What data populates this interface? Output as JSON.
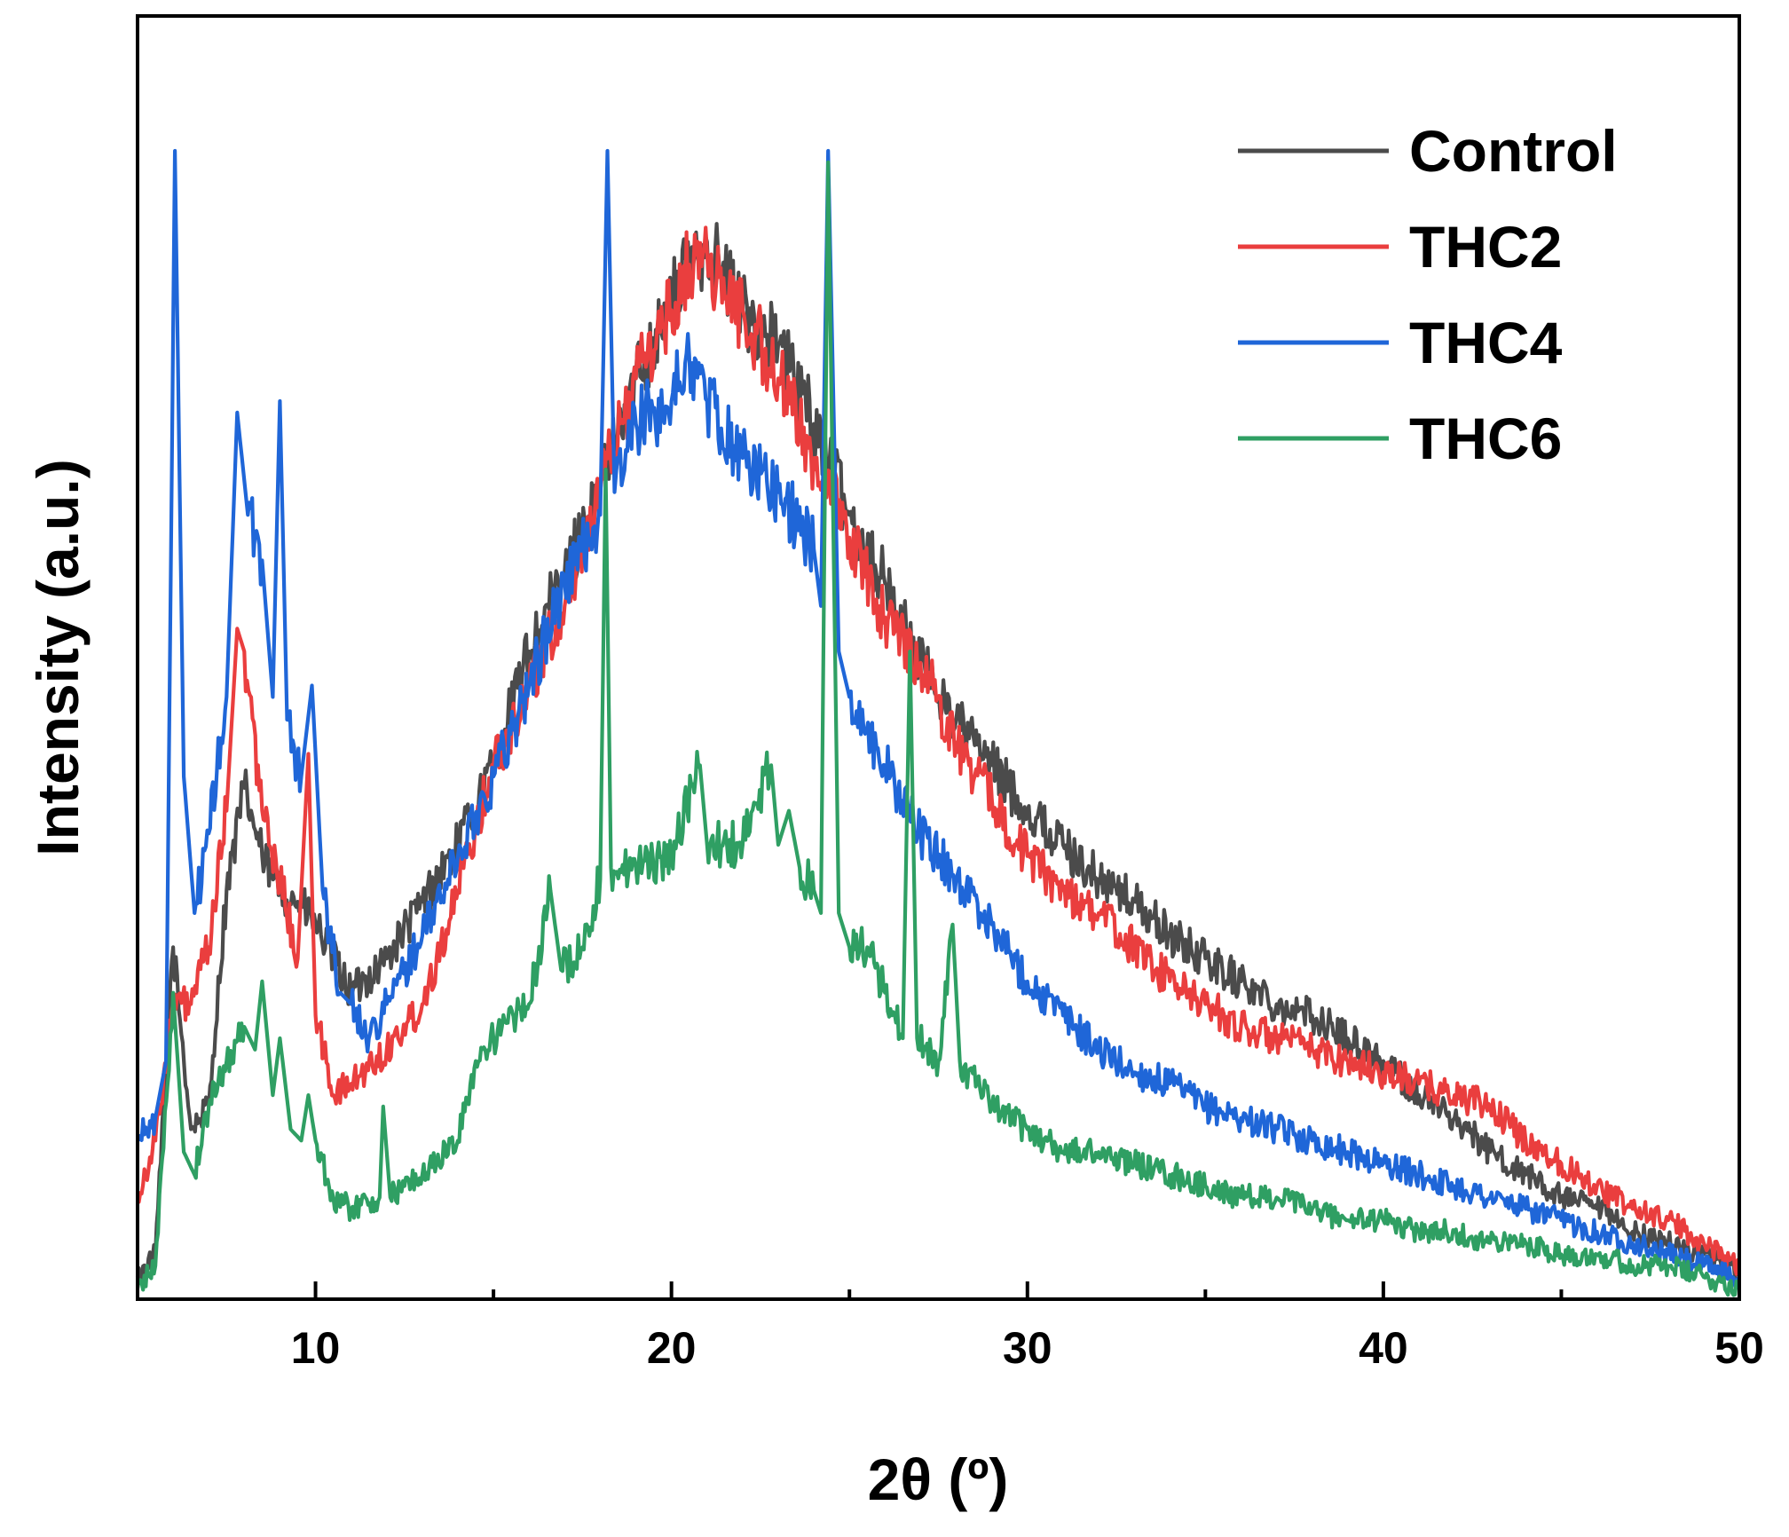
{
  "chart_data": {
    "type": "line",
    "title": "",
    "xlabel": "2θ (º)",
    "ylabel": "Intensity (a.u.)",
    "xlim": [
      5,
      50
    ],
    "ylim": [
      0,
      1
    ],
    "xticks": [
      10,
      20,
      30,
      40,
      50
    ],
    "x_minor_ticks": [
      15,
      25,
      35,
      45
    ],
    "grid": false,
    "legend_position": "top-right",
    "colors": {
      "Control": "#4b4b4b",
      "THC2": "#ea3e3e",
      "THC4": "#1f66d8",
      "THC6": "#2f9f63"
    },
    "series": [
      {
        "name": "Control",
        "points": [
          [
            5,
            0.01
          ],
          [
            5.5,
            0.03
          ],
          [
            6,
            0.3
          ],
          [
            6.5,
            0.14
          ],
          [
            7,
            0.16
          ],
          [
            7.5,
            0.35
          ],
          [
            8,
            0.44
          ],
          [
            8.5,
            0.38
          ],
          [
            9,
            0.35
          ],
          [
            9.5,
            0.34
          ],
          [
            10,
            0.32
          ],
          [
            10.5,
            0.29
          ],
          [
            11,
            0.26
          ],
          [
            12,
            0.29
          ],
          [
            13,
            0.34
          ],
          [
            14,
            0.39
          ],
          [
            15,
            0.46
          ],
          [
            16,
            0.56
          ],
          [
            17,
            0.63
          ],
          [
            18,
            0.7
          ],
          [
            19,
            0.8
          ],
          [
            20,
            0.87
          ],
          [
            20.5,
            0.9
          ],
          [
            21,
            0.92
          ],
          [
            21.5,
            0.89
          ],
          [
            22,
            0.86
          ],
          [
            23,
            0.83
          ],
          [
            24,
            0.76
          ],
          [
            25,
            0.68
          ],
          [
            26,
            0.62
          ],
          [
            27,
            0.55
          ],
          [
            28,
            0.5
          ],
          [
            29,
            0.46
          ],
          [
            30,
            0.42
          ],
          [
            31,
            0.39
          ],
          [
            32,
            0.36
          ],
          [
            33,
            0.34
          ],
          [
            34,
            0.31
          ],
          [
            35,
            0.29
          ],
          [
            36,
            0.27
          ],
          [
            37,
            0.25
          ],
          [
            38,
            0.24
          ],
          [
            39,
            0.22
          ],
          [
            40,
            0.2
          ],
          [
            41,
            0.17
          ],
          [
            42,
            0.15
          ],
          [
            43,
            0.12
          ],
          [
            44,
            0.1
          ],
          [
            45,
            0.08
          ],
          [
            46,
            0.07
          ],
          [
            47,
            0.05
          ],
          [
            48,
            0.04
          ],
          [
            49,
            0.03
          ],
          [
            50,
            0.015
          ]
        ]
      },
      {
        "name": "THC2",
        "points": [
          [
            5,
            0.08
          ],
          [
            5.5,
            0.13
          ],
          [
            6,
            0.25
          ],
          [
            6.5,
            0.25
          ],
          [
            7,
            0.3
          ],
          [
            7.5,
            0.42
          ],
          [
            7.8,
            0.58
          ],
          [
            8,
            0.56
          ],
          [
            8.5,
            0.42
          ],
          [
            9,
            0.36
          ],
          [
            9.5,
            0.29
          ],
          [
            9.8,
            0.47
          ],
          [
            10,
            0.24
          ],
          [
            10.5,
            0.17
          ],
          [
            11,
            0.18
          ],
          [
            12,
            0.21
          ],
          [
            13,
            0.25
          ],
          [
            14,
            0.35
          ],
          [
            15,
            0.46
          ],
          [
            16,
            0.53
          ],
          [
            17,
            0.6
          ],
          [
            18,
            0.7
          ],
          [
            19,
            0.8
          ],
          [
            20,
            0.86
          ],
          [
            20.5,
            0.9
          ],
          [
            21,
            0.91
          ],
          [
            21.5,
            0.87
          ],
          [
            22,
            0.86
          ],
          [
            23,
            0.8
          ],
          [
            24,
            0.73
          ],
          [
            25,
            0.66
          ],
          [
            26,
            0.59
          ],
          [
            27,
            0.55
          ],
          [
            28,
            0.48
          ],
          [
            29,
            0.43
          ],
          [
            30,
            0.38
          ],
          [
            31,
            0.35
          ],
          [
            32,
            0.33
          ],
          [
            33,
            0.3
          ],
          [
            34,
            0.27
          ],
          [
            35,
            0.25
          ],
          [
            36,
            0.23
          ],
          [
            37,
            0.22
          ],
          [
            38,
            0.21
          ],
          [
            39,
            0.2
          ],
          [
            40,
            0.19
          ],
          [
            41,
            0.18
          ],
          [
            42,
            0.17
          ],
          [
            43,
            0.16
          ],
          [
            44,
            0.13
          ],
          [
            45,
            0.11
          ],
          [
            46,
            0.09
          ],
          [
            47,
            0.07
          ],
          [
            48,
            0.06
          ],
          [
            49,
            0.04
          ],
          [
            50,
            0.02
          ]
        ]
      },
      {
        "name": "THC4",
        "points": [
          [
            5,
            0.13
          ],
          [
            5.5,
            0.15
          ],
          [
            5.8,
            0.2
          ],
          [
            6.05,
            1.0
          ],
          [
            6.3,
            0.45
          ],
          [
            6.6,
            0.33
          ],
          [
            7,
            0.4
          ],
          [
            7.5,
            0.52
          ],
          [
            7.8,
            0.77
          ],
          [
            8.1,
            0.68
          ],
          [
            8.5,
            0.64
          ],
          [
            8.8,
            0.52
          ],
          [
            9,
            0.78
          ],
          [
            9.2,
            0.5
          ],
          [
            9.6,
            0.45
          ],
          [
            9.9,
            0.53
          ],
          [
            10.2,
            0.35
          ],
          [
            10.7,
            0.26
          ],
          [
            11,
            0.25
          ],
          [
            11.5,
            0.22
          ],
          [
            12,
            0.25
          ],
          [
            13,
            0.31
          ],
          [
            14,
            0.38
          ],
          [
            15,
            0.45
          ],
          [
            16,
            0.53
          ],
          [
            17,
            0.62
          ],
          [
            18,
            0.68
          ],
          [
            18.2,
            1.0
          ],
          [
            18.4,
            0.7
          ],
          [
            19,
            0.76
          ],
          [
            20,
            0.78
          ],
          [
            20.5,
            0.82
          ],
          [
            21,
            0.78
          ],
          [
            22,
            0.73
          ],
          [
            23,
            0.7
          ],
          [
            24,
            0.65
          ],
          [
            24.2,
            0.6
          ],
          [
            24.4,
            1.0
          ],
          [
            24.7,
            0.56
          ],
          [
            25,
            0.52
          ],
          [
            26,
            0.46
          ],
          [
            27,
            0.4
          ],
          [
            28,
            0.36
          ],
          [
            29,
            0.32
          ],
          [
            30,
            0.27
          ],
          [
            31,
            0.24
          ],
          [
            32,
            0.21
          ],
          [
            33,
            0.19
          ],
          [
            34,
            0.18
          ],
          [
            35,
            0.16
          ],
          [
            36,
            0.15
          ],
          [
            37,
            0.14
          ],
          [
            38,
            0.13
          ],
          [
            39,
            0.12
          ],
          [
            40,
            0.11
          ],
          [
            41,
            0.1
          ],
          [
            42,
            0.09
          ],
          [
            43,
            0.08
          ],
          [
            44,
            0.07
          ],
          [
            45,
            0.06
          ],
          [
            46,
            0.05
          ],
          [
            47,
            0.04
          ],
          [
            48,
            0.03
          ],
          [
            49,
            0.02
          ],
          [
            50,
            0.01
          ]
        ]
      },
      {
        "name": "THC6",
        "points": [
          [
            5,
            0.0
          ],
          [
            5.5,
            0.02
          ],
          [
            6,
            0.26
          ],
          [
            6.3,
            0.12
          ],
          [
            6.6,
            0.1
          ],
          [
            7,
            0.16
          ],
          [
            7.5,
            0.2
          ],
          [
            8,
            0.23
          ],
          [
            8.3,
            0.21
          ],
          [
            8.5,
            0.27
          ],
          [
            8.8,
            0.17
          ],
          [
            9,
            0.22
          ],
          [
            9.3,
            0.14
          ],
          [
            9.6,
            0.13
          ],
          [
            9.8,
            0.17
          ],
          [
            10,
            0.13
          ],
          [
            10.5,
            0.08
          ],
          [
            11,
            0.07
          ],
          [
            11.8,
            0.08
          ],
          [
            11.9,
            0.16
          ],
          [
            12.1,
            0.08
          ],
          [
            12.5,
            0.09
          ],
          [
            13,
            0.1
          ],
          [
            14,
            0.13
          ],
          [
            14.5,
            0.2
          ],
          [
            15,
            0.22
          ],
          [
            16,
            0.25
          ],
          [
            16.6,
            0.35
          ],
          [
            16.9,
            0.28
          ],
          [
            17.5,
            0.3
          ],
          [
            18,
            0.36
          ],
          [
            18.15,
            0.72
          ],
          [
            18.3,
            0.37
          ],
          [
            19,
            0.37
          ],
          [
            20,
            0.38
          ],
          [
            20.8,
            0.46
          ],
          [
            21,
            0.39
          ],
          [
            22,
            0.39
          ],
          [
            22.8,
            0.46
          ],
          [
            23,
            0.39
          ],
          [
            23.3,
            0.42
          ],
          [
            23.6,
            0.37
          ],
          [
            24,
            0.35
          ],
          [
            24.2,
            0.33
          ],
          [
            24.4,
            0.99
          ],
          [
            24.7,
            0.33
          ],
          [
            25,
            0.3
          ],
          [
            25.5,
            0.3
          ],
          [
            26,
            0.26
          ],
          [
            26.5,
            0.22
          ],
          [
            26.7,
            0.56
          ],
          [
            26.9,
            0.22
          ],
          [
            27.5,
            0.2
          ],
          [
            27.9,
            0.32
          ],
          [
            28.1,
            0.2
          ],
          [
            29,
            0.16
          ],
          [
            30,
            0.14
          ],
          [
            31,
            0.12
          ],
          [
            32,
            0.12
          ],
          [
            33,
            0.11
          ],
          [
            34,
            0.1
          ],
          [
            35,
            0.09
          ],
          [
            36,
            0.08
          ],
          [
            37,
            0.08
          ],
          [
            38,
            0.07
          ],
          [
            39,
            0.06
          ],
          [
            40,
            0.06
          ],
          [
            41,
            0.05
          ],
          [
            42,
            0.05
          ],
          [
            43,
            0.04
          ],
          [
            44,
            0.04
          ],
          [
            45,
            0.03
          ],
          [
            46,
            0.03
          ],
          [
            47,
            0.02
          ],
          [
            48,
            0.02
          ],
          [
            49,
            0.01
          ],
          [
            50,
            0.0
          ]
        ]
      }
    ]
  }
}
